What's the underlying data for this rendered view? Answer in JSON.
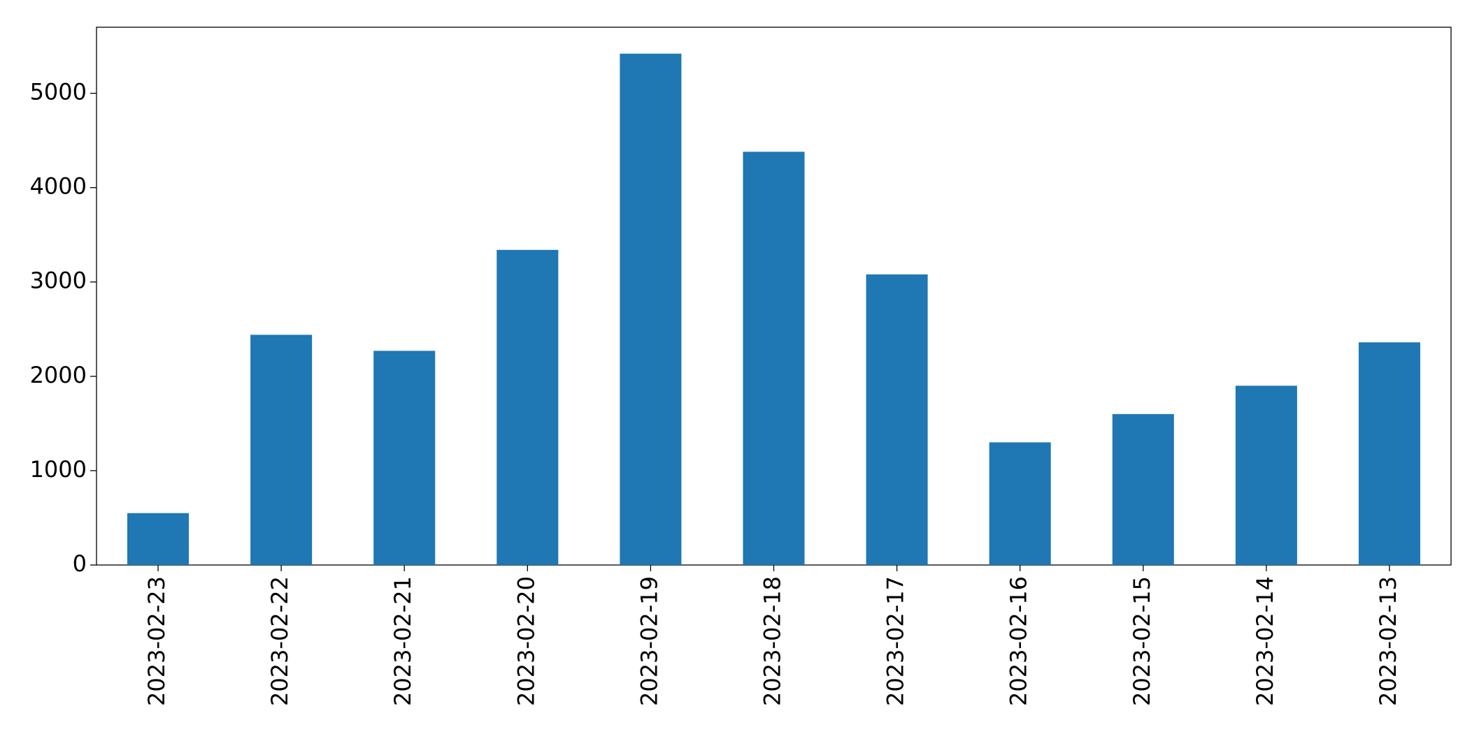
{
  "chart_data": {
    "type": "bar",
    "categories": [
      "2023-02-23",
      "2023-02-22",
      "2023-02-21",
      "2023-02-20",
      "2023-02-19",
      "2023-02-18",
      "2023-02-17",
      "2023-02-16",
      "2023-02-15",
      "2023-02-14",
      "2023-02-13"
    ],
    "values": [
      550,
      2440,
      2270,
      3340,
      5420,
      4380,
      3080,
      1300,
      1600,
      1900,
      2360
    ],
    "color": "#1f77b4",
    "ylim": [
      0,
      5700
    ],
    "yticks": [
      0,
      1000,
      2000,
      3000,
      4000,
      5000
    ],
    "grid": false
  }
}
